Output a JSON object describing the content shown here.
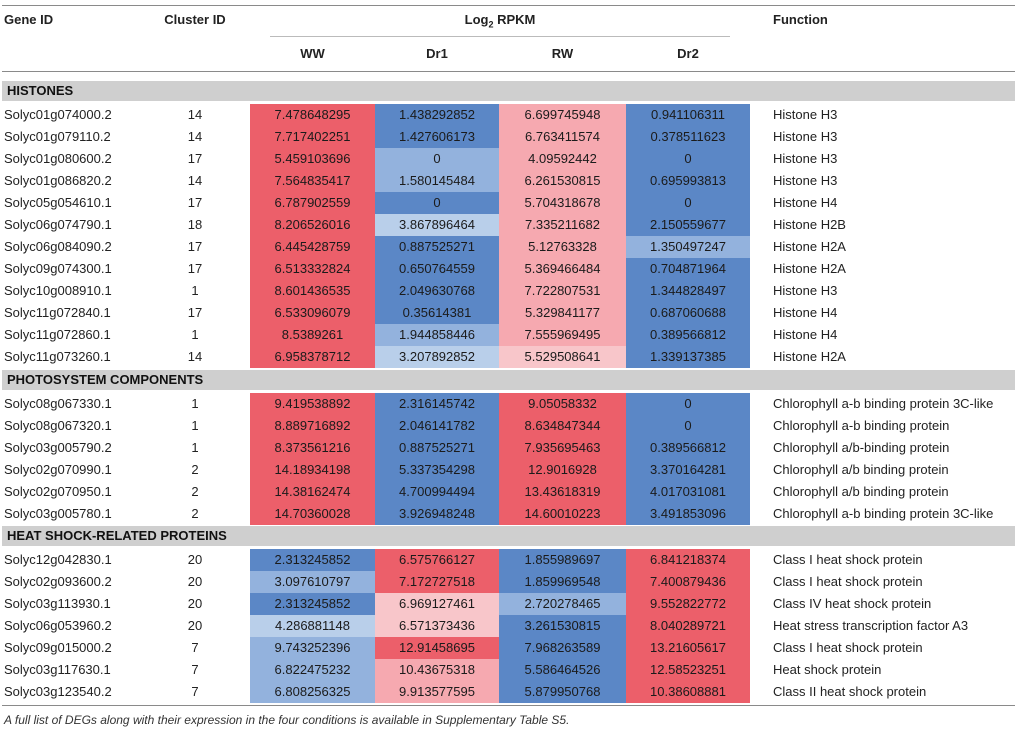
{
  "headers": {
    "gene_id": "Gene ID",
    "cluster_id": "Cluster ID",
    "log2_prefix": "Log",
    "log2_sub": "2",
    "log2_suffix": " RPKM",
    "ww": "WW",
    "dr1": "Dr1",
    "rw": "RW",
    "dr2": "Dr2",
    "function": "Function"
  },
  "colors": {
    "red": "#ec5f6a",
    "light_red": "#f6a9b0",
    "pale_red": "#f8c6ca",
    "blue": "#5b87c6",
    "light_blue": "#93b2dd",
    "pale_blue": "#b9cfea"
  },
  "sections": [
    {
      "title": "HISTONES",
      "rows": [
        {
          "gene": "Solyc01g074000.2",
          "cluster": "14",
          "vals": [
            "7.478648295",
            "1.438292852",
            "6.699745948",
            "0.941106311"
          ],
          "colors": [
            "red",
            "blue",
            "light_red",
            "blue"
          ],
          "func": "Histone H3"
        },
        {
          "gene": "Solyc01g079110.2",
          "cluster": "14",
          "vals": [
            "7.717402251",
            "1.427606173",
            "6.763411574",
            "0.378511623"
          ],
          "colors": [
            "red",
            "blue",
            "light_red",
            "blue"
          ],
          "func": "Histone H3"
        },
        {
          "gene": "Solyc01g080600.2",
          "cluster": "17",
          "vals": [
            "5.459103696",
            "0",
            "4.09592442",
            "0"
          ],
          "colors": [
            "red",
            "light_blue",
            "light_red",
            "blue"
          ],
          "func": "Histone H3"
        },
        {
          "gene": "Solyc01g086820.2",
          "cluster": "14",
          "vals": [
            "7.564835417",
            "1.580145484",
            "6.261530815",
            "0.695993813"
          ],
          "colors": [
            "red",
            "light_blue",
            "light_red",
            "blue"
          ],
          "func": "Histone H3"
        },
        {
          "gene": "Solyc05g054610.1",
          "cluster": "17",
          "vals": [
            "6.787902559",
            "0",
            "5.704318678",
            "0"
          ],
          "colors": [
            "red",
            "blue",
            "light_red",
            "blue"
          ],
          "func": "Histone H4"
        },
        {
          "gene": "Solyc06g074790.1",
          "cluster": "18",
          "vals": [
            "8.206526016",
            "3.867896464",
            "7.335211682",
            "2.150559677"
          ],
          "colors": [
            "red",
            "pale_blue",
            "light_red",
            "blue"
          ],
          "func": "Histone H2B"
        },
        {
          "gene": "Solyc06g084090.2",
          "cluster": "17",
          "vals": [
            "6.445428759",
            "0.887525271",
            "5.12763328",
            "1.350497247"
          ],
          "colors": [
            "red",
            "blue",
            "light_red",
            "light_blue"
          ],
          "func": "Histone H2A"
        },
        {
          "gene": "Solyc09g074300.1",
          "cluster": "17",
          "vals": [
            "6.513332824",
            "0.650764559",
            "5.369466484",
            "0.704871964"
          ],
          "colors": [
            "red",
            "blue",
            "light_red",
            "blue"
          ],
          "func": "Histone H2A"
        },
        {
          "gene": "Solyc10g008910.1",
          "cluster": "1",
          "vals": [
            "8.601436535",
            "2.049630768",
            "7.722807531",
            "1.344828497"
          ],
          "colors": [
            "red",
            "blue",
            "light_red",
            "blue"
          ],
          "func": "Histone H3"
        },
        {
          "gene": "Solyc11g072840.1",
          "cluster": "17",
          "vals": [
            "6.533096079",
            "0.35614381",
            "5.329841177",
            "0.687060688"
          ],
          "colors": [
            "red",
            "blue",
            "light_red",
            "blue"
          ],
          "func": "Histone H4"
        },
        {
          "gene": "Solyc11g072860.1",
          "cluster": "1",
          "vals": [
            "8.5389261",
            "1.944858446",
            "7.555969495",
            "0.389566812"
          ],
          "colors": [
            "red",
            "light_blue",
            "light_red",
            "blue"
          ],
          "func": "Histone H4"
        },
        {
          "gene": "Solyc11g073260.1",
          "cluster": "14",
          "vals": [
            "6.958378712",
            "3.207892852",
            "5.529508641",
            "1.339137385"
          ],
          "colors": [
            "red",
            "pale_blue",
            "pale_red",
            "blue"
          ],
          "func": "Histone H2A"
        }
      ]
    },
    {
      "title": "PHOTOSYSTEM COMPONENTS",
      "rows": [
        {
          "gene": "Solyc08g067330.1",
          "cluster": "1",
          "vals": [
            "9.419538892",
            "2.316145742",
            "9.05058332",
            "0"
          ],
          "colors": [
            "red",
            "blue",
            "red",
            "blue"
          ],
          "func": "Chlorophyll a-b binding protein 3C-like"
        },
        {
          "gene": "Solyc08g067320.1",
          "cluster": "1",
          "vals": [
            "8.889716892",
            "2.046141782",
            "8.634847344",
            "0"
          ],
          "colors": [
            "red",
            "blue",
            "red",
            "blue"
          ],
          "func": "Chlorophyll a-b binding protein"
        },
        {
          "gene": "Solyc03g005790.2",
          "cluster": "1",
          "vals": [
            "8.373561216",
            "0.887525271",
            "7.935695463",
            "0.389566812"
          ],
          "colors": [
            "red",
            "blue",
            "red",
            "blue"
          ],
          "func": "Chlorophyll a/b-binding protein"
        },
        {
          "gene": "Solyc02g070990.1",
          "cluster": "2",
          "vals": [
            "14.18934198",
            "5.337354298",
            "12.9016928",
            "3.370164281"
          ],
          "colors": [
            "red",
            "blue",
            "red",
            "blue"
          ],
          "func": "Chlorophyll a/b binding protein"
        },
        {
          "gene": "Solyc02g070950.1",
          "cluster": "2",
          "vals": [
            "14.38162474",
            "4.700994494",
            "13.43618319",
            "4.017031081"
          ],
          "colors": [
            "red",
            "blue",
            "red",
            "blue"
          ],
          "func": "Chlorophyll a/b binding protein"
        },
        {
          "gene": "Solyc03g005780.1",
          "cluster": "2",
          "vals": [
            "14.70360028",
            "3.926948248",
            "14.60010223",
            "3.491853096"
          ],
          "colors": [
            "red",
            "blue",
            "red",
            "blue"
          ],
          "func": "Chlorophyll a-b binding protein 3C-like"
        }
      ]
    },
    {
      "title": "HEAT SHOCK-RELATED PROTEINS",
      "rows": [
        {
          "gene": "Solyc12g042830.1",
          "cluster": "20",
          "vals": [
            "2.313245852",
            "6.575766127",
            "1.855989697",
            "6.841218374"
          ],
          "colors": [
            "blue",
            "red",
            "blue",
            "red"
          ],
          "func": "Class I heat shock protein"
        },
        {
          "gene": "Solyc02g093600.2",
          "cluster": "20",
          "vals": [
            "3.097610797",
            "7.172727518",
            "1.859969548",
            "7.400879436"
          ],
          "colors": [
            "light_blue",
            "red",
            "blue",
            "red"
          ],
          "func": "Class I heat shock protein"
        },
        {
          "gene": "Solyc03g113930.1",
          "cluster": "20",
          "vals": [
            "2.313245852",
            "6.969127461",
            "2.720278465",
            "9.552822772"
          ],
          "colors": [
            "blue",
            "pale_red",
            "light_blue",
            "red"
          ],
          "func": "Class IV heat shock protein"
        },
        {
          "gene": "Solyc06g053960.2",
          "cluster": "20",
          "vals": [
            "4.286881148",
            "6.571373436",
            "3.261530815",
            "8.040289721"
          ],
          "colors": [
            "pale_blue",
            "pale_red",
            "blue",
            "red"
          ],
          "func": "Heat stress transcription factor A3"
        },
        {
          "gene": "Solyc09g015000.2",
          "cluster": "7",
          "vals": [
            "9.743252396",
            "12.91458695",
            "7.968263589",
            "13.21605617"
          ],
          "colors": [
            "light_blue",
            "red",
            "blue",
            "red"
          ],
          "func": "Class I heat shock protein"
        },
        {
          "gene": "Solyc03g117630.1",
          "cluster": "7",
          "vals": [
            "6.822475232",
            "10.43675318",
            "5.586464526",
            "12.58523251"
          ],
          "colors": [
            "light_blue",
            "light_red",
            "blue",
            "red"
          ],
          "func": "Heat shock protein"
        },
        {
          "gene": "Solyc03g123540.2",
          "cluster": "7",
          "vals": [
            "6.808256325",
            "9.913577595",
            "5.879950768",
            "10.38608881"
          ],
          "colors": [
            "light_blue",
            "light_red",
            "blue",
            "red"
          ],
          "func": "Class II heat shock protein"
        }
      ]
    }
  ],
  "footnote": "A full list of DEGs along with their expression in the four conditions is available in Supplementary Table S5."
}
